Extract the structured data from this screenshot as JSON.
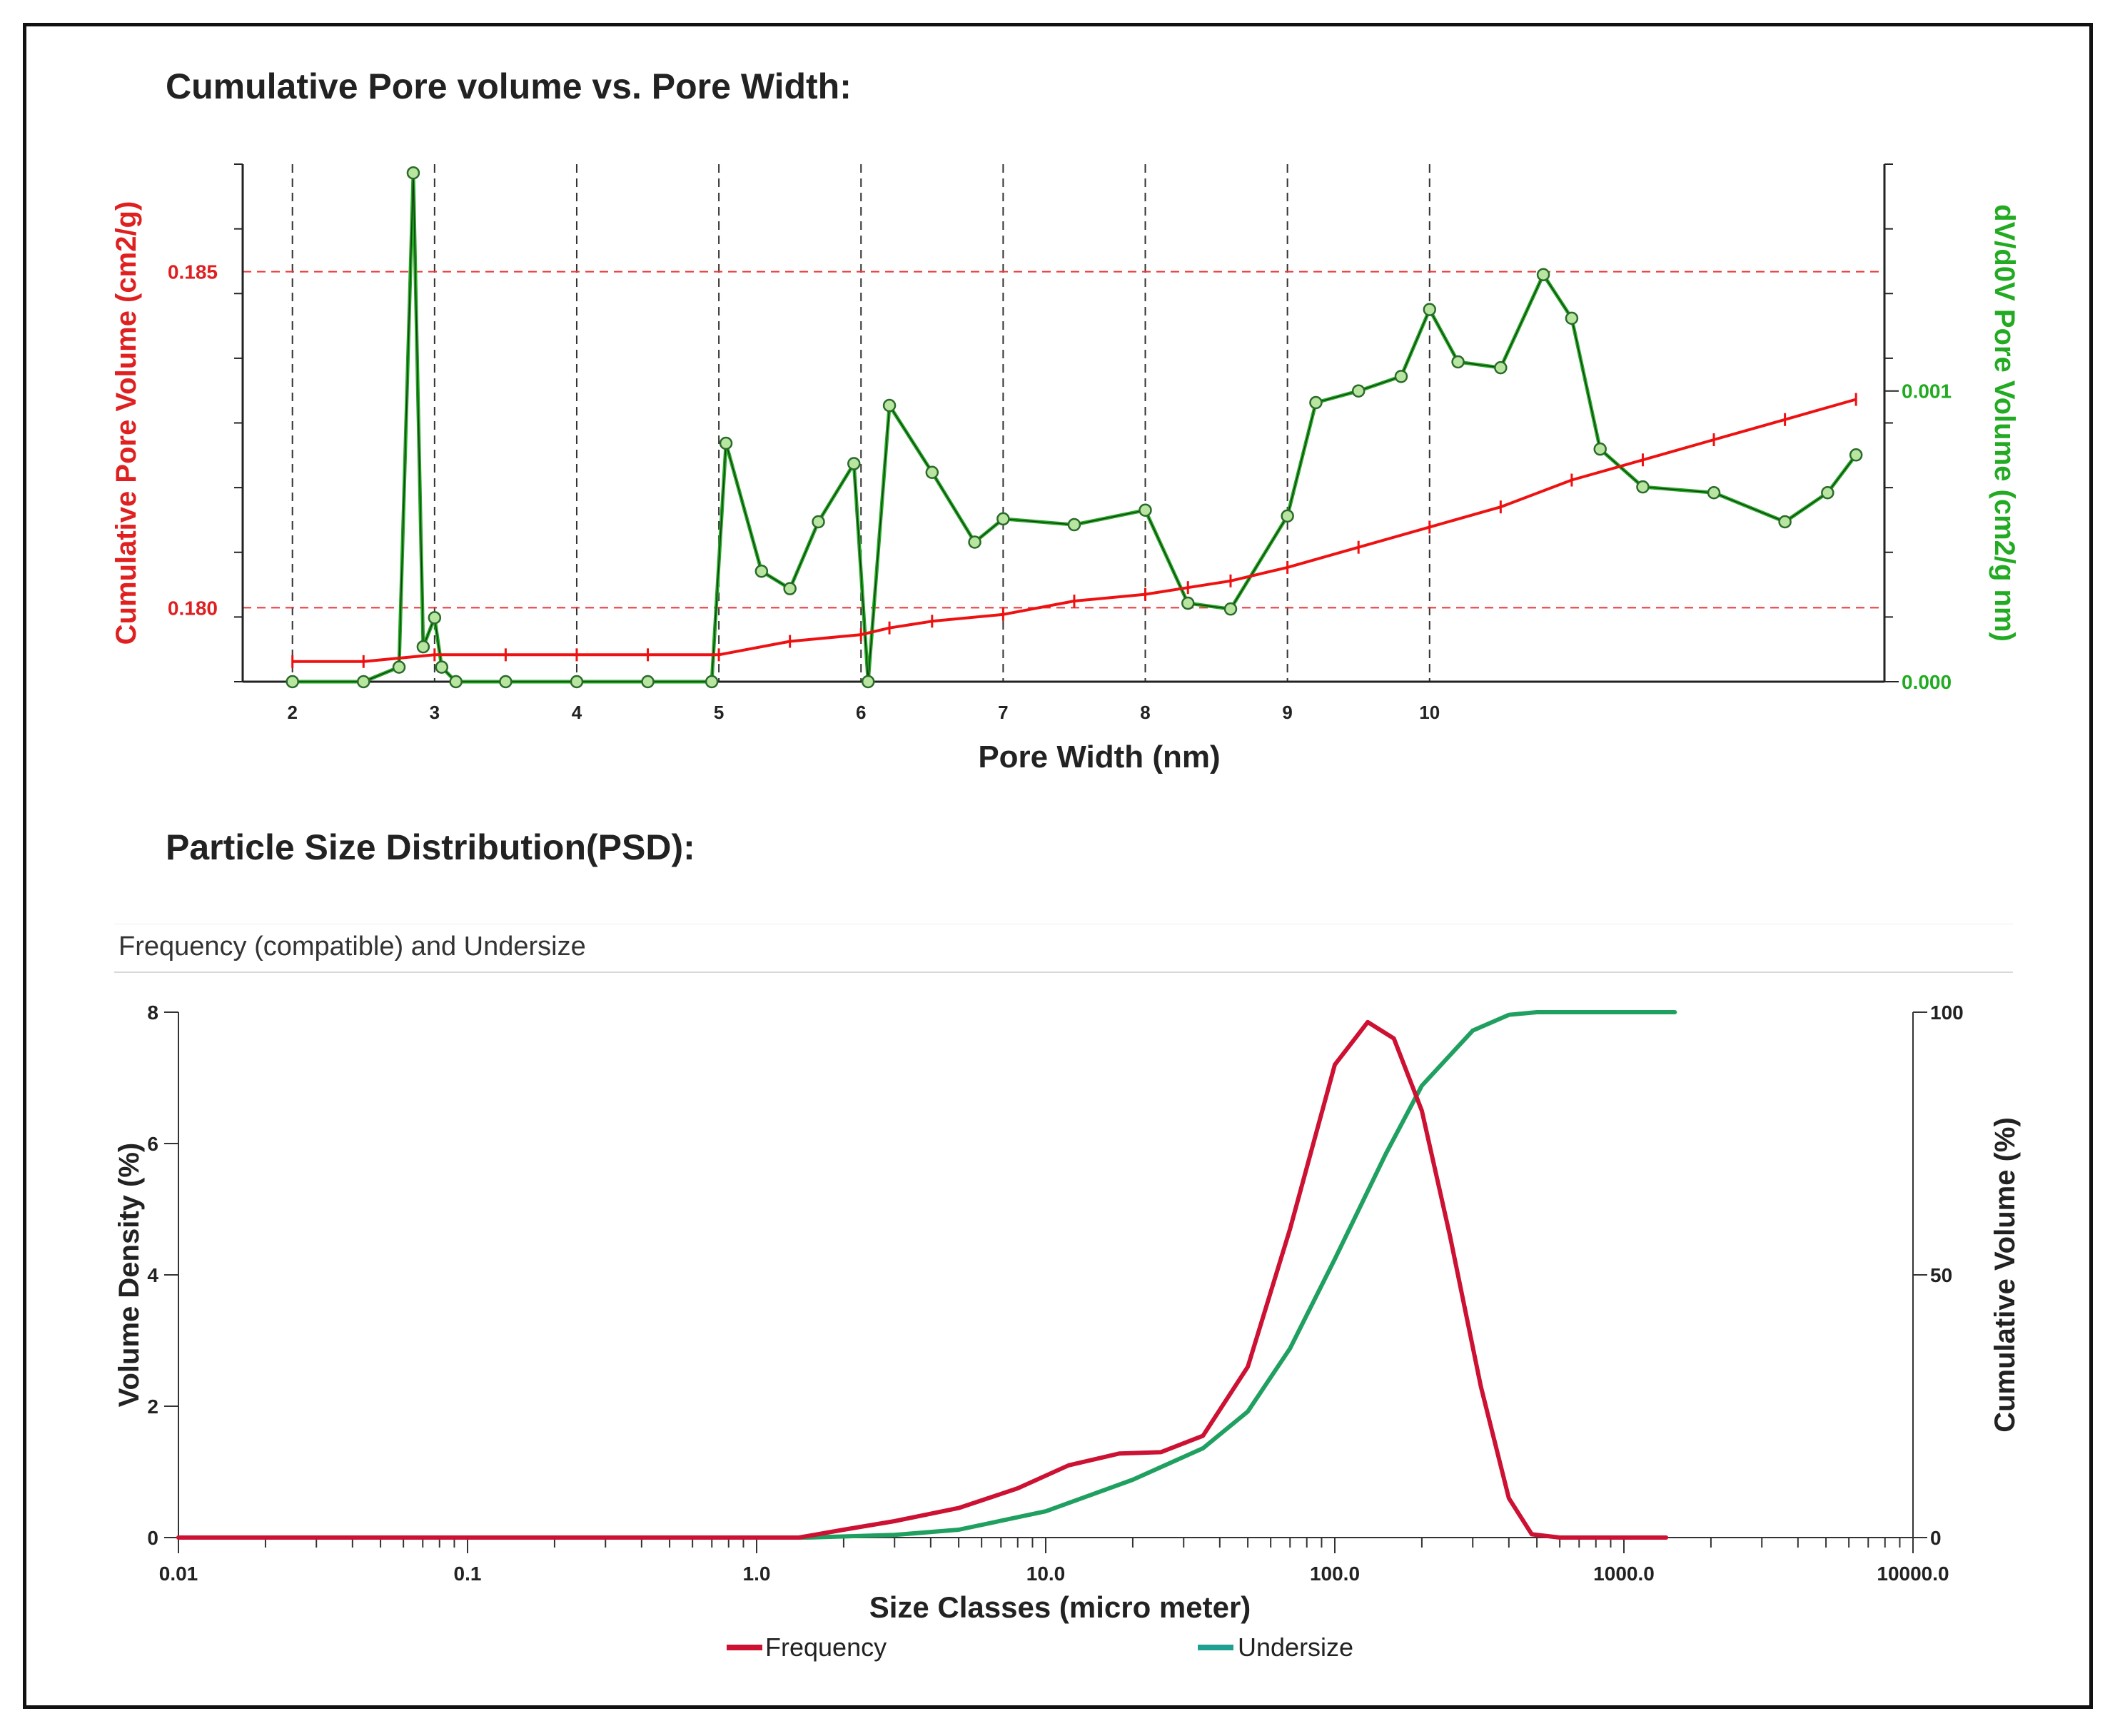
{
  "pore_title": "Cumulative Pore volume vs. Pore Width:",
  "psd_title": "Particle Size Distribution(PSD):",
  "psd_header": "Frequency (compatible) and Undersize",
  "colors": {
    "cumulative": "#ee1111",
    "dv": "#22aa22",
    "dv_dark": "#1a3a1a",
    "frequency": "#cc1133",
    "undersize": "#20a060",
    "undersize_legend": "#20a090"
  },
  "chart_data": [
    {
      "type": "line",
      "title": "Cumulative Pore volume vs. Pore Width:",
      "xlabel": "Pore Width (nm)",
      "ylabel_left": "Cumulative Pore Volume (cm2/g)",
      "ylabel_right": "dV/d0V Pore Volume (cm2/g nm)",
      "x_ticks": [
        "2",
        "3",
        "4",
        "5",
        "6",
        "7",
        "8",
        "9",
        "10"
      ],
      "xlim": [
        1.65,
        13.2
      ],
      "ylim_left": [
        0.1789,
        0.1866
      ],
      "ylim_right": [
        0.0,
        0.00178
      ],
      "y_ticks_left": [
        "0.180",
        "0.185"
      ],
      "y_ticks_right": [
        "0.000",
        "0.001"
      ],
      "grid": "dashed",
      "series": [
        {
          "name": "Cumulative Pore Volume (cm2/g)",
          "axis": "left",
          "x": [
            2.0,
            2.5,
            3.0,
            3.5,
            4.0,
            4.5,
            5.0,
            5.5,
            6.0,
            6.2,
            6.5,
            7.0,
            7.5,
            8.0,
            8.3,
            8.6,
            9.0,
            9.5,
            10.0,
            10.5,
            11.0,
            11.5,
            12.0,
            12.5,
            13.0
          ],
          "y": [
            0.1792,
            0.1792,
            0.1793,
            0.1793,
            0.1793,
            0.1793,
            0.1793,
            0.1795,
            0.1796,
            0.1797,
            0.1798,
            0.1799,
            0.1801,
            0.1802,
            0.1803,
            0.1804,
            0.1806,
            0.1809,
            0.1812,
            0.1815,
            0.1819,
            0.1822,
            0.1825,
            0.1828,
            0.1831
          ]
        },
        {
          "name": "dV/d0V Pore Volume (cm2/g nm)",
          "axis": "right",
          "x": [
            2.0,
            2.5,
            2.75,
            2.85,
            2.92,
            3.0,
            3.05,
            3.15,
            3.5,
            4.0,
            4.5,
            4.95,
            5.05,
            5.3,
            5.5,
            5.7,
            5.95,
            6.05,
            6.2,
            6.5,
            6.8,
            7.0,
            7.5,
            8.0,
            8.3,
            8.6,
            9.0,
            9.2,
            9.5,
            9.8,
            10.0,
            10.2,
            10.5,
            10.8,
            11.0,
            11.2,
            11.5,
            12.0,
            12.5,
            12.8,
            13.0
          ],
          "y": [
            0.0,
            0.0,
            5e-05,
            0.00175,
            0.00012,
            0.00022,
            5e-05,
            0.0,
            0.0,
            0.0,
            0.0,
            0.0,
            0.00082,
            0.00038,
            0.00032,
            0.00055,
            0.00075,
            0.0,
            0.00095,
            0.00072,
            0.00048,
            0.00056,
            0.00054,
            0.00059,
            0.00027,
            0.00025,
            0.00057,
            0.00096,
            0.001,
            0.00105,
            0.00128,
            0.0011,
            0.00108,
            0.0014,
            0.00125,
            0.0008,
            0.00067,
            0.00065,
            0.00055,
            0.00065,
            0.00078
          ]
        }
      ]
    },
    {
      "type": "line",
      "title": "Frequency (compatible) and Undersize",
      "xlabel": "Size Classes (micro meter)",
      "ylabel_left": "Volume Density (%)",
      "ylabel_right": "Cumulative Volume (%)",
      "x_scale": "log",
      "x_ticks": [
        "0.01",
        "0.1",
        "1.0",
        "10.0",
        "100.0",
        "1000.0",
        "10000.0"
      ],
      "xlim": [
        0.01,
        10000
      ],
      "ylim_left": [
        0,
        8
      ],
      "ylim_right": [
        0,
        100
      ],
      "y_ticks_left": [
        "0",
        "2",
        "4",
        "6",
        "8"
      ],
      "y_ticks_right": [
        "0",
        "50",
        "100"
      ],
      "legend": "bottom",
      "series": [
        {
          "name": "Frequency",
          "axis": "left",
          "x": [
            0.01,
            1.4,
            2.0,
            3.0,
            5.0,
            8.0,
            12.0,
            18.0,
            25.0,
            35.0,
            50.0,
            70.0,
            100.0,
            130.0,
            160.0,
            200.0,
            250.0,
            320.0,
            400.0,
            480.0,
            600.0,
            1400.0
          ],
          "y": [
            0.0,
            0.0,
            0.12,
            0.25,
            0.45,
            0.75,
            1.1,
            1.28,
            1.3,
            1.55,
            2.6,
            4.7,
            7.2,
            7.85,
            7.6,
            6.5,
            4.6,
            2.3,
            0.6,
            0.05,
            0.0,
            0.0
          ]
        },
        {
          "name": "Undersize",
          "axis": "right",
          "x": [
            0.01,
            1.5,
            3.0,
            5.0,
            10.0,
            20.0,
            35.0,
            50.0,
            70.0,
            100.0,
            150.0,
            200.0,
            300.0,
            400.0,
            500.0,
            1500.0
          ],
          "y": [
            0.0,
            0.0,
            0.5,
            1.5,
            5.0,
            11.0,
            17.0,
            24.0,
            36.0,
            53.0,
            73.0,
            86.0,
            96.5,
            99.5,
            100.0,
            100.0
          ]
        }
      ]
    }
  ]
}
